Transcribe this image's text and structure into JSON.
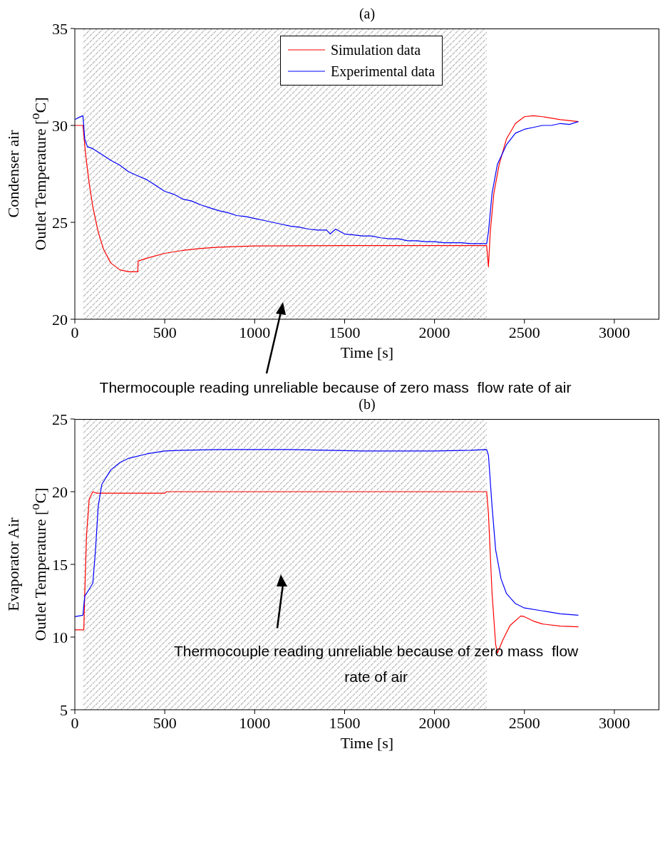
{
  "chart_data": [
    {
      "type": "line",
      "title": "(a)",
      "xlabel": "Time [s]",
      "ylabel": "Condenser air\nOutlet Temperature [$^{o}$C]",
      "xlim": [
        0,
        3250
      ],
      "xticks": [
        0,
        500,
        1000,
        1500,
        2000,
        2500,
        3000
      ],
      "ylim": [
        20,
        35
      ],
      "yticks": [
        20,
        25,
        30,
        35
      ],
      "grid": false,
      "legend": "top",
      "marker": "none",
      "line_style": "solid",
      "bands": [
        {
          "axis": "x",
          "from": 45,
          "to": 2290,
          "color": "#a0a0a0"
        }
      ],
      "annotations": [
        "Thermocouple reading unreliable because of zero mass  flow rate of air"
      ],
      "series": [
        {
          "name": "Simulation data",
          "color": "#ff0000",
          "x": [
            0,
            45,
            50,
            60,
            80,
            100,
            130,
            160,
            200,
            250,
            300,
            350,
            352,
            400,
            500,
            600,
            700,
            800,
            1000,
            1500,
            2290,
            2300,
            2310,
            2330,
            2360,
            2400,
            2450,
            2500,
            2550,
            2600,
            2700,
            2800
          ],
          "values": [
            30.0,
            30.0,
            29.5,
            28.5,
            27.0,
            25.8,
            24.5,
            23.6,
            22.9,
            22.55,
            22.45,
            22.45,
            23.0,
            23.15,
            23.4,
            23.55,
            23.65,
            23.72,
            23.78,
            23.8,
            23.8,
            22.7,
            24.5,
            26.5,
            28.0,
            29.3,
            30.1,
            30.45,
            30.5,
            30.45,
            30.3,
            30.2
          ]
        },
        {
          "name": "Experimental data",
          "color": "#0000ff",
          "x": [
            0,
            20,
            45,
            55,
            70,
            100,
            150,
            200,
            250,
            300,
            350,
            400,
            450,
            500,
            550,
            600,
            650,
            700,
            750,
            800,
            850,
            900,
            950,
            1000,
            1050,
            1100,
            1150,
            1200,
            1250,
            1300,
            1350,
            1400,
            1420,
            1450,
            1500,
            1550,
            1600,
            1650,
            1700,
            1750,
            1800,
            1850,
            1900,
            1950,
            2000,
            2050,
            2100,
            2150,
            2200,
            2250,
            2290,
            2300,
            2320,
            2350,
            2400,
            2450,
            2500,
            2550,
            2600,
            2650,
            2700,
            2750,
            2800
          ],
          "values": [
            30.3,
            30.4,
            30.5,
            29.3,
            28.9,
            28.8,
            28.5,
            28.2,
            27.95,
            27.6,
            27.4,
            27.2,
            26.9,
            26.6,
            26.45,
            26.2,
            26.1,
            25.9,
            25.75,
            25.6,
            25.5,
            25.35,
            25.3,
            25.2,
            25.1,
            25.0,
            24.9,
            24.8,
            24.75,
            24.65,
            24.6,
            24.6,
            24.4,
            24.65,
            24.4,
            24.35,
            24.3,
            24.3,
            24.2,
            24.15,
            24.15,
            24.05,
            24.05,
            24.0,
            24.0,
            23.95,
            23.95,
            23.95,
            23.9,
            23.9,
            23.9,
            24.5,
            26.5,
            28.0,
            29.0,
            29.6,
            29.8,
            29.9,
            30.0,
            30.0,
            30.1,
            30.05,
            30.2
          ]
        }
      ]
    },
    {
      "type": "line",
      "title": "(b)",
      "xlabel": "Time [s]",
      "ylabel": "Evaporator Air\nOutlet Temperature [$^{o}$C]",
      "xlim": [
        0,
        3250
      ],
      "xticks": [
        0,
        500,
        1000,
        1500,
        2000,
        2500,
        3000
      ],
      "ylim": [
        5,
        25
      ],
      "yticks": [
        5,
        10,
        15,
        20,
        25
      ],
      "grid": false,
      "legend": false,
      "marker": "none",
      "line_style": "solid",
      "bands": [
        {
          "axis": "x",
          "from": 45,
          "to": 2290,
          "color": "#a0a0a0"
        }
      ],
      "annotations": [
        "Thermocouple reading unreliable because of zero mass  flow\nrate of air"
      ],
      "series": [
        {
          "color": "#ff0000",
          "x": [
            0,
            50,
            55,
            65,
            80,
            100,
            120,
            500,
            510,
            2290,
            2300,
            2320,
            2340,
            2350,
            2380,
            2420,
            2480,
            2500,
            2550,
            2600,
            2700,
            2800
          ],
          "values": [
            10.5,
            10.5,
            13.0,
            17.0,
            19.5,
            20.0,
            19.9,
            19.9,
            20.0,
            20.0,
            18.5,
            13.0,
            9.5,
            8.9,
            9.8,
            10.8,
            11.45,
            11.4,
            11.1,
            10.9,
            10.75,
            10.7
          ]
        },
        {
          "color": "#0000ff",
          "x": [
            0,
            45,
            55,
            70,
            100,
            115,
            130,
            150,
            200,
            250,
            300,
            400,
            500,
            600,
            800,
            1000,
            1200,
            1400,
            1600,
            1800,
            2000,
            2200,
            2290,
            2300,
            2320,
            2340,
            2370,
            2400,
            2450,
            2500,
            2600,
            2700,
            2800
          ],
          "values": [
            11.4,
            11.5,
            12.8,
            13.1,
            13.7,
            16.0,
            19.0,
            20.5,
            21.5,
            22.0,
            22.3,
            22.6,
            22.8,
            22.85,
            22.9,
            22.9,
            22.9,
            22.85,
            22.8,
            22.8,
            22.8,
            22.85,
            22.9,
            22.5,
            19.0,
            16.0,
            14.0,
            13.0,
            12.3,
            12.0,
            11.8,
            11.6,
            11.5
          ]
        }
      ]
    }
  ]
}
